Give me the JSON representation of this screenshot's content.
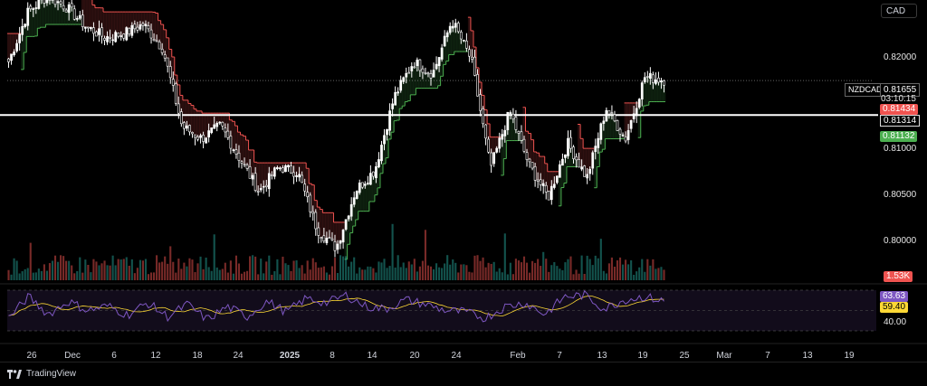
{
  "header": {
    "currency": "CAD"
  },
  "symbol_tag": {
    "symbol": "NZDCAD",
    "price": "0.81655",
    "countdown": "03:10:15"
  },
  "price_tags": {
    "sar_upper": "0.81434",
    "hline": "0.81314",
    "sar_lower": "0.81132"
  },
  "price_axis": {
    "ticks": [
      "0.82000",
      "0.81000",
      "0.80500",
      "0.80000"
    ]
  },
  "volume": {
    "label": "1.53K"
  },
  "rsi": {
    "value": "63.63",
    "ma": "59.40",
    "tick": "40.00"
  },
  "date_axis": {
    "labels": [
      "26",
      "Dec",
      "6",
      "12",
      "18",
      "24",
      "2025",
      "8",
      "14",
      "20",
      "24",
      "Feb",
      "7",
      "13",
      "19",
      "25",
      "Mar",
      "7",
      "13",
      "19"
    ]
  },
  "branding": {
    "name": "TradingView"
  },
  "colors": {
    "up": "#26a69a",
    "down": "#ef5350",
    "sar_up": "#4caf50",
    "sar_down": "#ef5350",
    "rsi": "#7e57c2",
    "rsi_ma": "#fdd835",
    "rsi_band": "#ede7f6"
  },
  "chart_data": {
    "type": "candlestick",
    "symbol": "NZDCAD",
    "currency": "CAD",
    "last_price": 0.81655,
    "horizontal_line": 0.81314,
    "sar_upper": 0.81434,
    "sar_lower": 0.81132,
    "ylim": [
      0.7995,
      0.8245
    ],
    "yticks": [
      0.8,
      0.805,
      0.81,
      0.82
    ],
    "close_path": [
      0.8184,
      0.8233,
      0.8249,
      0.8238,
      0.8219,
      0.8208,
      0.8212,
      0.8221,
      0.8197,
      0.812,
      0.8108,
      0.8121,
      0.8088,
      0.8056,
      0.808,
      0.8075,
      0.8019,
      0.8,
      0.8057,
      0.8077,
      0.8149,
      0.8184,
      0.8172,
      0.8225,
      0.8186,
      0.8079,
      0.8135,
      0.8082,
      0.805,
      0.8104,
      0.8069,
      0.8138,
      0.8108,
      0.8169,
      0.8166
    ],
    "volume_label": "1.53K",
    "rsi": {
      "value": 63.63,
      "ma": 59.4,
      "tick": 40.0,
      "path": [
        40,
        68,
        45,
        62,
        50,
        56,
        44,
        60,
        42,
        58,
        38,
        55,
        42,
        62,
        48,
        66,
        60,
        70,
        55,
        52,
        64,
        58,
        50,
        48,
        40,
        55,
        60,
        45,
        68,
        70,
        52,
        64,
        68,
        62
      ]
    },
    "x_labels": [
      "26",
      "Dec",
      "6",
      "12",
      "18",
      "24",
      "2025",
      "8",
      "14",
      "20",
      "24",
      "Feb",
      "7",
      "13",
      "19",
      "25",
      "Mar",
      "7",
      "13",
      "19"
    ]
  }
}
